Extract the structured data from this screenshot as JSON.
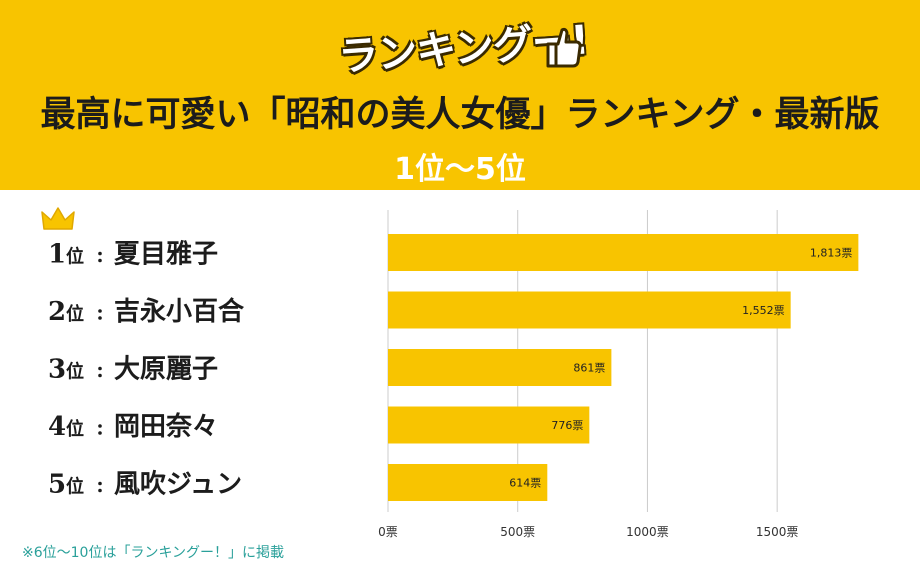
{
  "header": {
    "logo_text": "ランキングー!",
    "title": "最高に可愛い「昭和の美人女優」ランキング・最新版",
    "subtitle": "1位〜5位"
  },
  "footer": {
    "note": "※6位〜10位は「ランキングー！」に掲載"
  },
  "chart_data": {
    "type": "bar",
    "orientation": "horizontal",
    "rank_suffix": "位",
    "categories": [
      "夏目雅子",
      "吉永小百合",
      "大原麗子",
      "岡田奈々",
      "風吹ジュン"
    ],
    "ranks": [
      "1",
      "2",
      "3",
      "4",
      "5"
    ],
    "values": [
      1813,
      1552,
      861,
      776,
      614
    ],
    "value_labels": [
      "1,813票",
      "1,552票",
      "861票",
      "776票",
      "614票"
    ],
    "xlim": [
      0,
      1800
    ],
    "ticks": [
      0,
      500,
      1000,
      1500
    ],
    "tick_labels": [
      "0票",
      "500票",
      "1000票",
      "1500票"
    ],
    "grid": true,
    "bar_color": "#f8c400",
    "accent_color": "#f8c400"
  }
}
